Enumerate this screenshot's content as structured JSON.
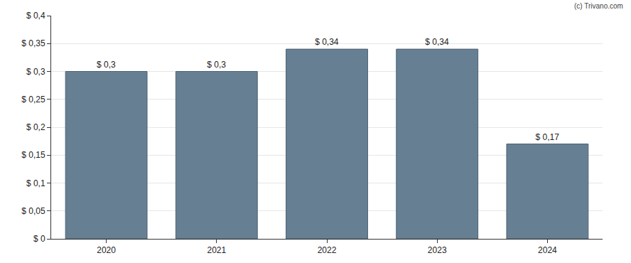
{
  "chart_data": {
    "type": "bar",
    "categories": [
      "2020",
      "2021",
      "2022",
      "2023",
      "2024"
    ],
    "values": [
      0.3,
      0.3,
      0.34,
      0.34,
      0.17
    ],
    "value_labels": [
      "$ 0,3",
      "$ 0,3",
      "$ 0,34",
      "$ 0,34",
      "$ 0,17"
    ],
    "data_labels": true,
    "color": "#667f93",
    "ylim": [
      0,
      0.4
    ],
    "yticks": [
      {
        "value": 0,
        "label": "$ 0"
      },
      {
        "value": 0.05,
        "label": "$ 0,05"
      },
      {
        "value": 0.1,
        "label": "$ 0,1"
      },
      {
        "value": 0.15,
        "label": "$ 0,15"
      },
      {
        "value": 0.2,
        "label": "$ 0,2"
      },
      {
        "value": 0.25,
        "label": "$ 0,25"
      },
      {
        "value": 0.3,
        "label": "$ 0,3"
      },
      {
        "value": 0.35,
        "label": "$ 0,35"
      },
      {
        "value": 0.4,
        "label": "$ 0,4"
      }
    ],
    "grid": true,
    "annotations": [
      "(c) Trivano.com"
    ]
  }
}
